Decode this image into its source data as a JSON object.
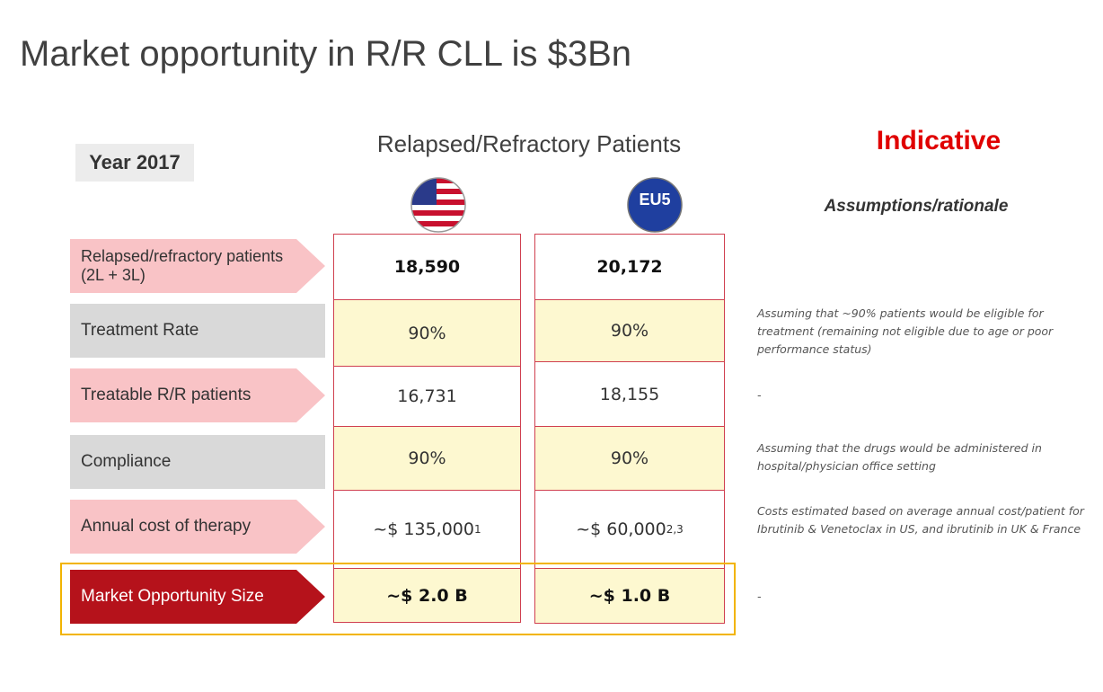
{
  "title": "Market opportunity in R/R CLL is $3Bn",
  "year_label": "Year 2017",
  "column_header": "Relapsed/Refractory Patients",
  "indicative": "Indicative",
  "eu_badge": "EU5",
  "assumptions_header": "Assumptions/rationale",
  "rows": [
    {
      "label": "Relapsed/refractory patients (2L + 3L)",
      "us": "18,590",
      "eu": "20,172"
    },
    {
      "label": "Treatment Rate",
      "us": "90%",
      "eu": "90%",
      "note": "Assuming that ~90% patients would be eligible for treatment (remaining not eligible due to age or poor performance status)"
    },
    {
      "label": "Treatable R/R patients",
      "us": "16,731",
      "eu": "18,155",
      "note": "-"
    },
    {
      "label": "Compliance",
      "us": "90%",
      "eu": "90%",
      "note": "Assuming that the drugs would be administered in hospital/physician office setting"
    },
    {
      "label": "Annual cost of therapy",
      "us": "~$ 135,000",
      "us_sup": "1",
      "eu": "~$ 60,000",
      "eu_sup": "2,3",
      "note": "Costs estimated based on average annual cost/patient for Ibrutinib & Venetoclax in US, and ibrutinib in UK & France"
    },
    {
      "label": "Market Opportunity Size",
      "us": "~$ 2.0 B",
      "eu": "~$ 1.0 B",
      "note": "-"
    }
  ]
}
